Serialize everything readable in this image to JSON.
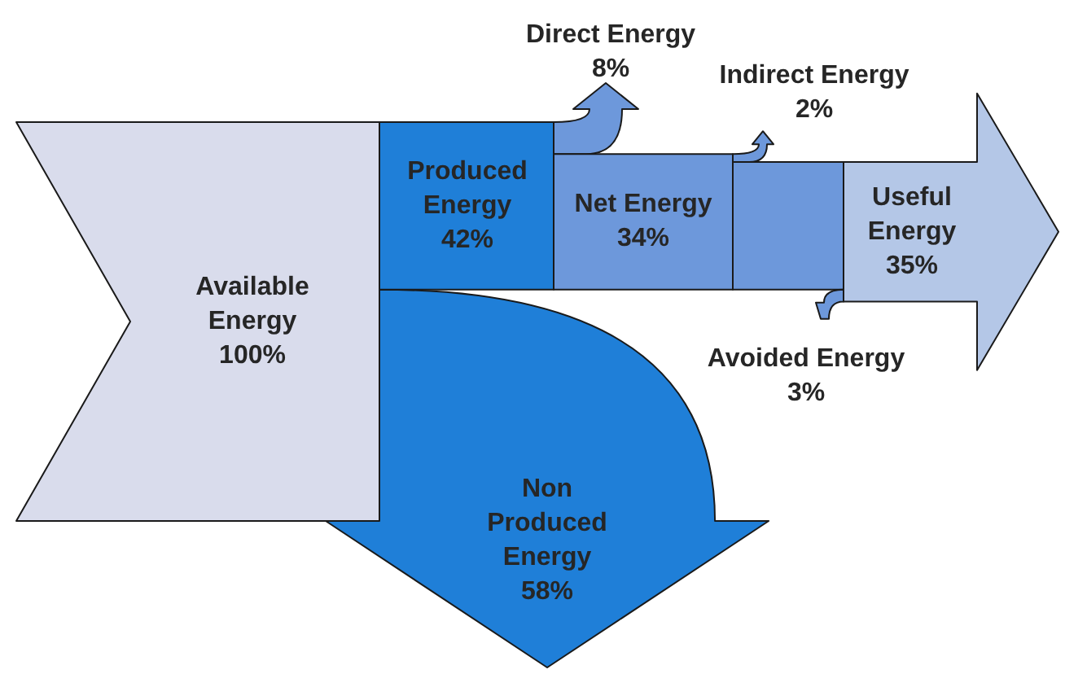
{
  "chart_data": {
    "type": "other",
    "categories": [
      "Available Energy",
      "Produced Energy",
      "Non Produced Energy",
      "Direct Energy",
      "Indirect Energy",
      "Net Energy",
      "Avoided Energy",
      "Useful Energy"
    ],
    "values": [
      100,
      42,
      58,
      8,
      2,
      34,
      3,
      35
    ],
    "value_labels": [
      "100%",
      "42%",
      "58%",
      "8%",
      "2%",
      "34%",
      "3%",
      "35%"
    ],
    "colors": [
      "#d9dcec",
      "#1f7fd8",
      "#1f7fd8",
      "#6d98db",
      "#6d98db",
      "#6d98db",
      "#6d98db",
      "#b4c7e7"
    ]
  }
}
